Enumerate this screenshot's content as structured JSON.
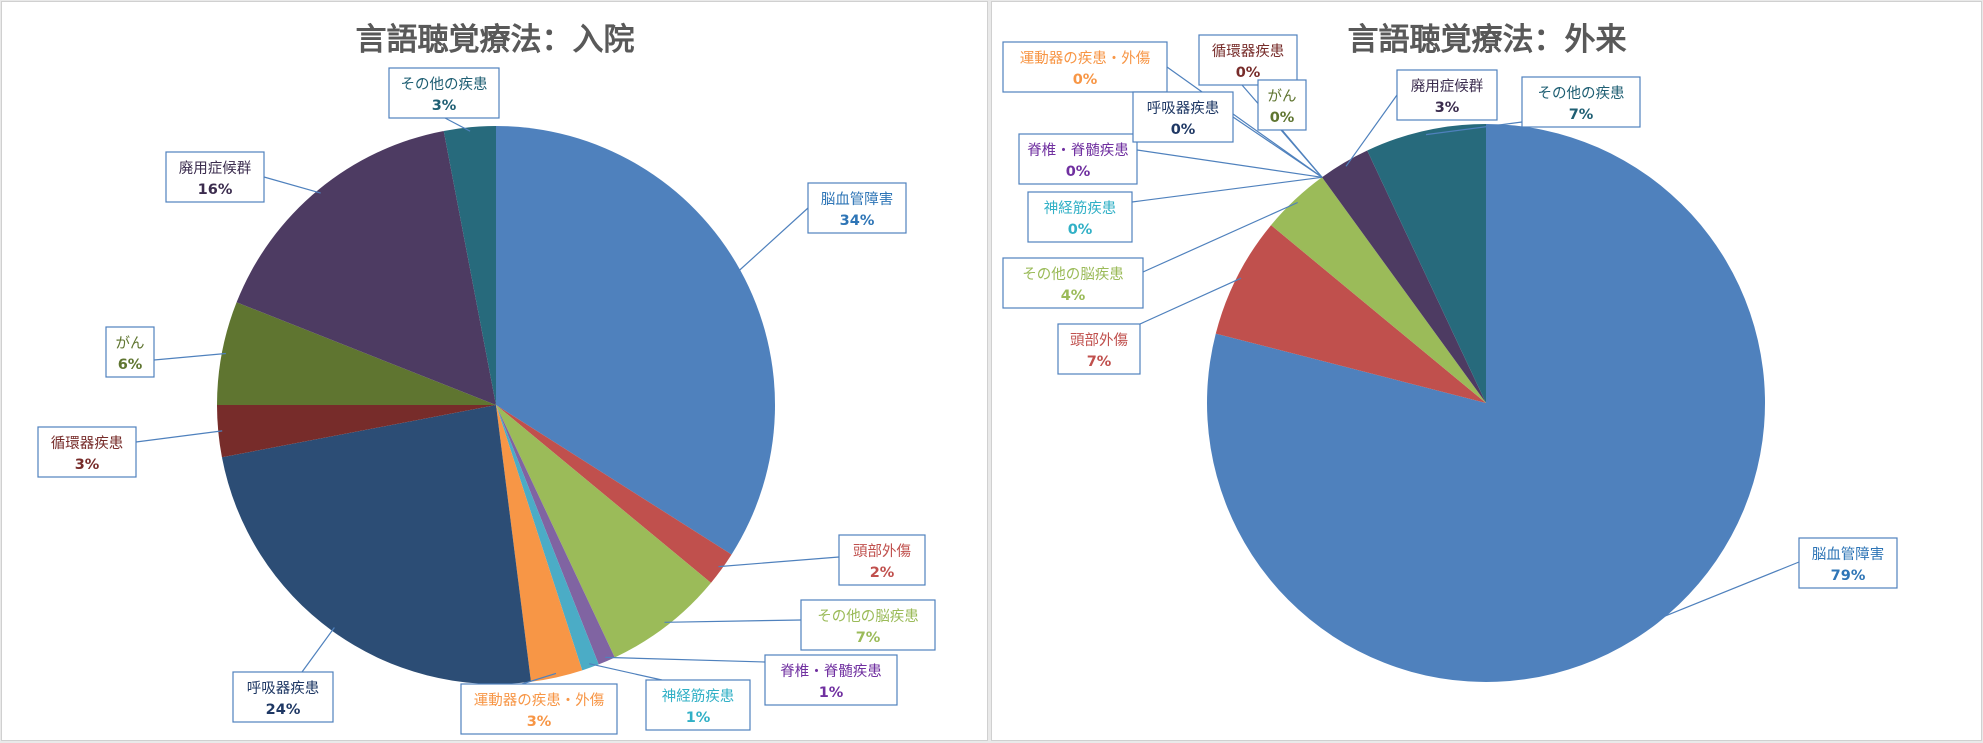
{
  "chart_data": [
    {
      "type": "pie",
      "title": "言語聴覚療法：入院",
      "slices": [
        {
          "name": "脳血管障害",
          "value": 34,
          "label": "34%",
          "color": "#4f81bd",
          "text_color": "#2e75b6"
        },
        {
          "name": "頭部外傷",
          "value": 2,
          "label": "2%",
          "color": "#c0504d",
          "text_color": "#c0504d"
        },
        {
          "name": "その他の脳疾患",
          "value": 7,
          "label": "7%",
          "color": "#9bbb59",
          "text_color": "#9bbb59"
        },
        {
          "name": "脊椎・脊髄疾患",
          "value": 1,
          "label": "1%",
          "color": "#8064a2",
          "text_color": "#7030a0"
        },
        {
          "name": "神経筋疾患",
          "value": 1,
          "label": "1%",
          "color": "#4bacc6",
          "text_color": "#31b0c6"
        },
        {
          "name": "運動器の疾患・外傷",
          "value": 3,
          "label": "3%",
          "color": "#f79646",
          "text_color": "#f79646"
        },
        {
          "name": "呼吸器疾患",
          "value": 24,
          "label": "24%",
          "color": "#2c4d75",
          "text_color": "#1f3864"
        },
        {
          "name": "循環器疾患",
          "value": 3,
          "label": "3%",
          "color": "#772c2a",
          "text_color": "#772c2a"
        },
        {
          "name": "がん",
          "value": 6,
          "label": "6%",
          "color": "#5f7530",
          "text_color": "#5f7530"
        },
        {
          "name": "廃用症候群",
          "value": 16,
          "label": "16%",
          "color": "#4d3b62",
          "text_color": "#3b2c4e"
        },
        {
          "name": "その他の疾患",
          "value": 3,
          "label": "3%",
          "color": "#276a7c",
          "text_color": "#1f5f73"
        }
      ]
    },
    {
      "type": "pie",
      "title": "言語聴覚療法：外来",
      "slices": [
        {
          "name": "脳血管障害",
          "value": 79,
          "label": "79%",
          "color": "#4f81bd",
          "text_color": "#2e75b6"
        },
        {
          "name": "頭部外傷",
          "value": 7,
          "label": "7%",
          "color": "#c0504d",
          "text_color": "#c0504d"
        },
        {
          "name": "その他の脳疾患",
          "value": 4,
          "label": "4%",
          "color": "#9bbb59",
          "text_color": "#9bbb59"
        },
        {
          "name": "神経筋疾患",
          "value": 0,
          "label": "0%",
          "color": "#4bacc6",
          "text_color": "#31b0c6"
        },
        {
          "name": "脊椎・脊髄疾患",
          "value": 0,
          "label": "0%",
          "color": "#8064a2",
          "text_color": "#7030a0"
        },
        {
          "name": "運動器の疾患・外傷",
          "value": 0,
          "label": "0%",
          "color": "#f79646",
          "text_color": "#f79646"
        },
        {
          "name": "呼吸器疾患",
          "value": 0,
          "label": "0%",
          "color": "#2c4d75",
          "text_color": "#1f3864"
        },
        {
          "name": "循環器疾患",
          "value": 0,
          "label": "0%",
          "color": "#772c2a",
          "text_color": "#772c2a"
        },
        {
          "name": "がん",
          "value": 0,
          "label": "0%",
          "color": "#5f7530",
          "text_color": "#5f7530"
        },
        {
          "name": "廃用症候群",
          "value": 3,
          "label": "3%",
          "color": "#4d3b62",
          "text_color": "#3b2c4e"
        },
        {
          "name": "その他の疾患",
          "value": 7,
          "label": "7%",
          "color": "#276a7c",
          "text_color": "#1f5f73"
        }
      ]
    }
  ]
}
